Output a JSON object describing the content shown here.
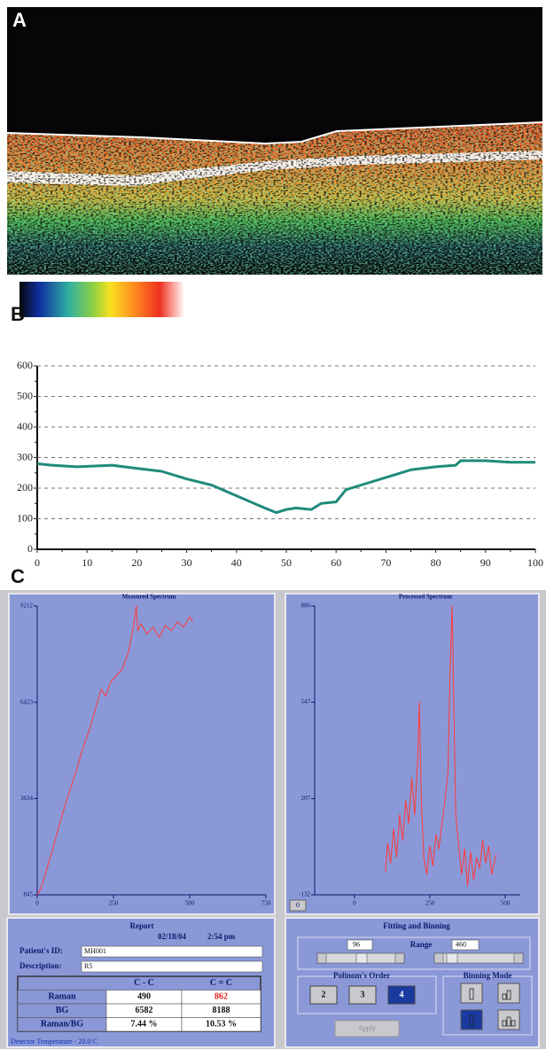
{
  "panels": {
    "a": "A",
    "b": "B",
    "c": "C"
  },
  "chart_data": [
    {
      "type": "line",
      "xlim": [
        0,
        100
      ],
      "xticks": [
        0,
        10,
        20,
        30,
        40,
        50,
        60,
        70,
        80,
        90,
        100
      ],
      "ylim": [
        0,
        600
      ],
      "yticks": [
        0,
        100,
        200,
        300,
        400,
        500,
        600
      ],
      "grid": true,
      "x": [
        0,
        3,
        8,
        15,
        20,
        25,
        30,
        35,
        40,
        45,
        48,
        50,
        52,
        55,
        57,
        60,
        62,
        65,
        70,
        75,
        80,
        84,
        85,
        90,
        95,
        100
      ],
      "series": [
        {
          "color": "#1f8a7c",
          "values": [
            280,
            275,
            270,
            275,
            265,
            255,
            230,
            210,
            175,
            140,
            120,
            130,
            135,
            130,
            150,
            155,
            195,
            210,
            235,
            260,
            270,
            275,
            290,
            290,
            285,
            285
          ]
        }
      ]
    },
    {
      "type": "line",
      "title": "Measured Spectrum",
      "xlim": [
        0,
        750
      ],
      "xticks": [
        0,
        250,
        500,
        750
      ],
      "ylim": [
        845,
        9212
      ],
      "yticks": [
        845,
        3634,
        6423,
        9212
      ],
      "grid": false,
      "x": [
        0,
        10,
        20,
        35,
        50,
        70,
        90,
        110,
        130,
        150,
        170,
        190,
        210,
        225,
        240,
        260,
        280,
        300,
        315,
        325,
        330,
        340,
        360,
        380,
        400,
        420,
        440,
        460,
        480,
        500,
        510
      ],
      "series": [
        {
          "color": "#ff3a3a",
          "values": [
            845,
            1000,
            1250,
            1700,
            2150,
            2800,
            3400,
            3950,
            4500,
            5100,
            5600,
            6200,
            6800,
            6600,
            7000,
            7200,
            7400,
            7900,
            8600,
            9212,
            8500,
            8700,
            8400,
            8600,
            8300,
            8650,
            8500,
            8750,
            8600,
            8900,
            8750
          ]
        }
      ]
    },
    {
      "type": "line",
      "title": "Processed Spectrum",
      "xlim": [
        -132,
        550
      ],
      "xticks": [
        0,
        250,
        500
      ],
      "ylim": [
        -132,
        886
      ],
      "yticks": [
        -132,
        207,
        547,
        886
      ],
      "grid": false,
      "x": [
        103,
        110,
        120,
        130,
        140,
        150,
        160,
        170,
        180,
        190,
        200,
        210,
        215,
        222,
        230,
        240,
        250,
        260,
        270,
        280,
        290,
        300,
        310,
        318,
        324,
        330,
        336,
        345,
        355,
        365,
        375,
        385,
        395,
        405,
        415,
        425,
        435,
        445,
        455,
        470
      ],
      "series": [
        {
          "color": "#ff3a3a",
          "values": [
            -50,
            50,
            -20,
            100,
            0,
            150,
            60,
            200,
            120,
            280,
            150,
            350,
            547,
            200,
            0,
            -60,
            40,
            -30,
            80,
            30,
            120,
            200,
            300,
            700,
            886,
            500,
            150,
            50,
            -60,
            30,
            -100,
            20,
            -80,
            0,
            -40,
            60,
            -20,
            40,
            -60,
            10
          ]
        }
      ]
    }
  ],
  "processed_button": "0",
  "report": {
    "title": "Report",
    "date": "02/18/04",
    "time": "2:54 pm",
    "patient_id_label": "Patient's ID:",
    "patient_id": "MH001",
    "description_label": "Description:",
    "description": "R5",
    "table": {
      "header": [
        "C - C",
        "C = C"
      ],
      "rows": [
        [
          "Raman",
          490,
          862
        ],
        [
          "BG",
          6582,
          8188
        ],
        [
          "Raman/BG",
          "7.44 %",
          "10.53 %"
        ]
      ]
    },
    "detector_temperature": "Detector Temperature  - 20.0 C"
  },
  "fitting": {
    "title": "Fitting and Binning",
    "range_low": 96,
    "range_label": "Range",
    "range_high": 460,
    "order_title": "Polinom's Order",
    "orders": [
      2,
      3,
      4
    ],
    "binning_title": "Binning Mode",
    "apply": "Apply"
  }
}
